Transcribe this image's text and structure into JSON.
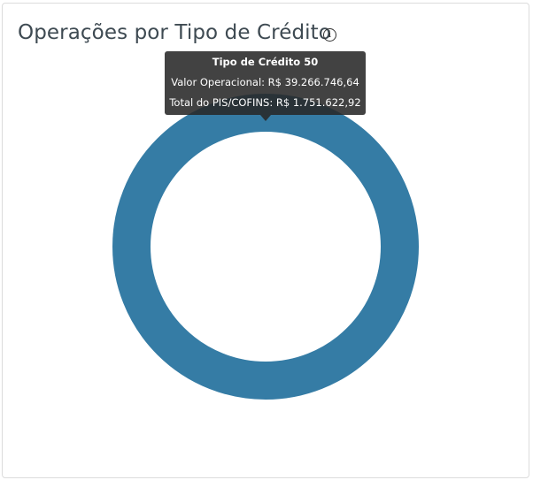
{
  "card": {
    "title": "Operações por Tipo de Crédito",
    "info_icon": "info-circle-icon"
  },
  "chart_data": {
    "type": "pie",
    "variant": "donut",
    "categories": [
      "Tipo de Crédito 50"
    ],
    "values": [
      39266746.64
    ],
    "colors": [
      "#357ca5"
    ],
    "legend": "none"
  },
  "tooltip": {
    "title": "Tipo de Crédito 50",
    "line1": "Valor Operacional: R$ 39.266.746,64",
    "line2": "Total do PIS/COFINS: R$ 1.751.622,92"
  }
}
